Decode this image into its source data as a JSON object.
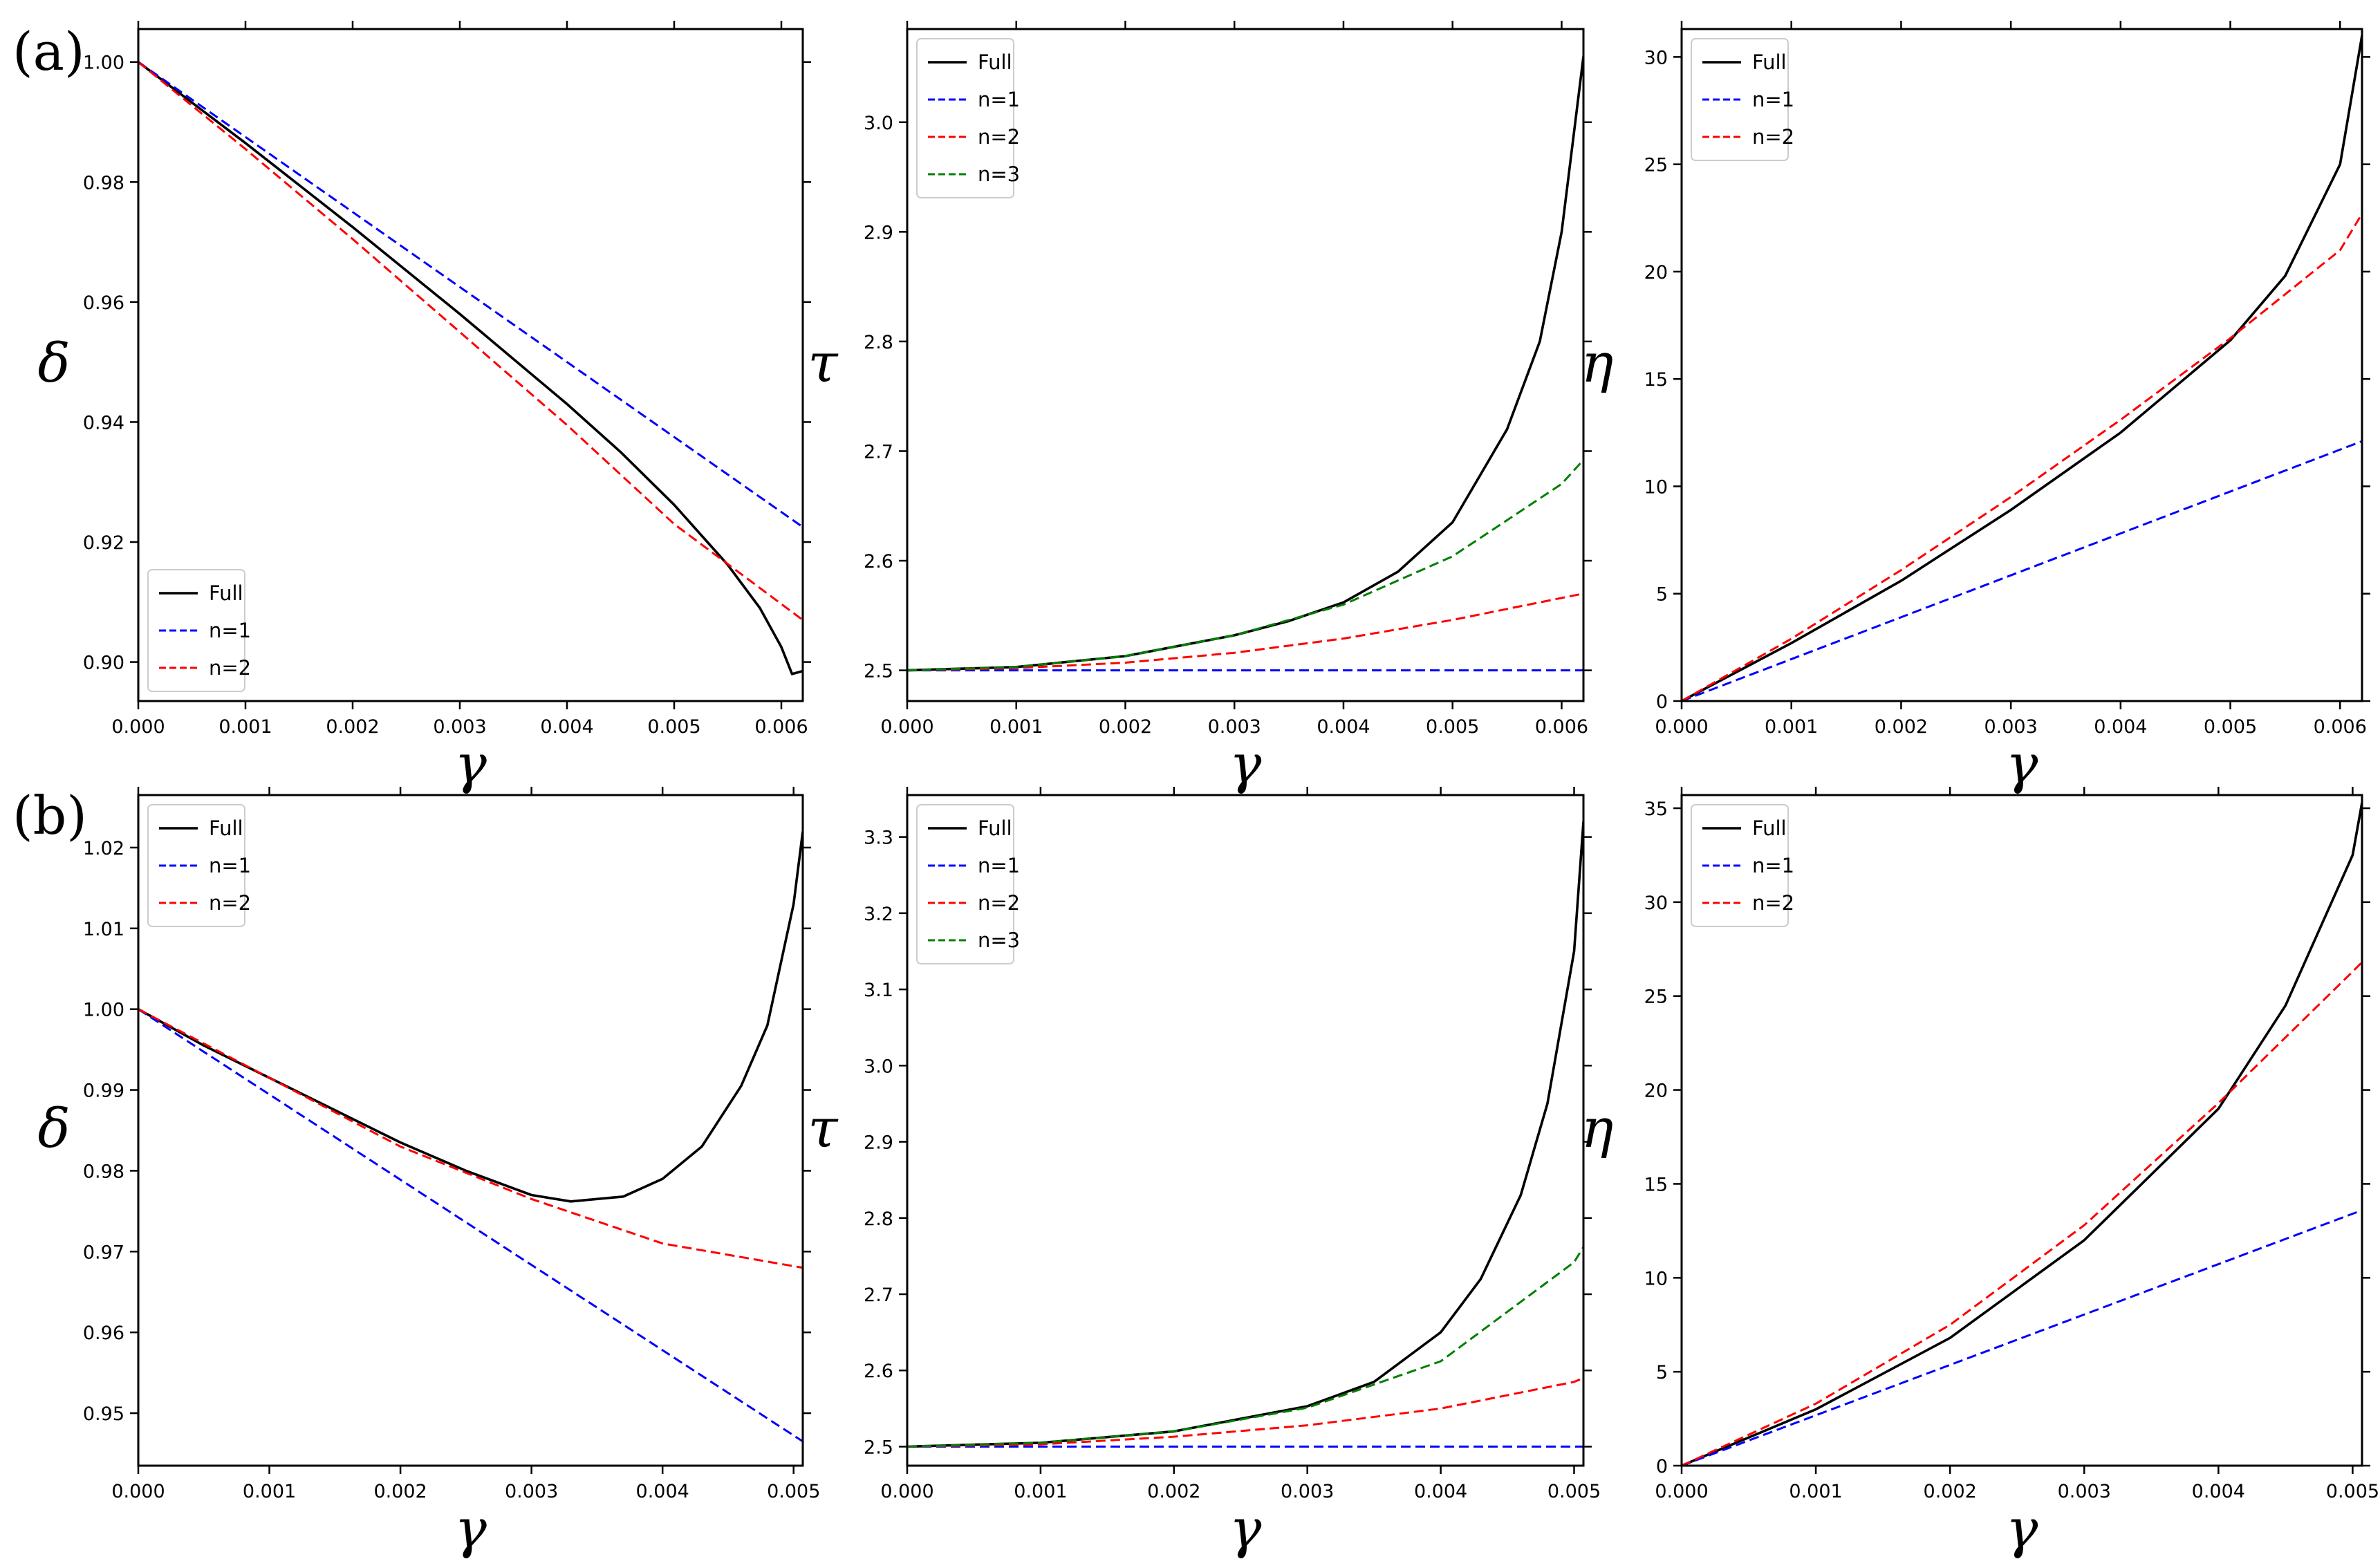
{
  "figure": {
    "row_labels": [
      "(a)",
      "(b)"
    ]
  },
  "chart_data": [
    {
      "id": "a-delta",
      "row": 0,
      "col": 0,
      "type": "line",
      "xlabel": "γ",
      "ylabel": "δ",
      "xlim": [
        0,
        0.0062
      ],
      "ylim": [
        0.8935,
        1.0055
      ],
      "xticks": [
        0,
        0.001,
        0.002,
        0.003,
        0.004,
        0.005,
        0.006
      ],
      "xticklabels": [
        "0.000",
        "0.001",
        "0.002",
        "0.003",
        "0.004",
        "0.005",
        "0.006"
      ],
      "yticks": [
        0.9,
        0.92,
        0.94,
        0.96,
        0.98,
        1.0
      ],
      "yticklabels": [
        "0.90",
        "0.92",
        "0.94",
        "0.96",
        "0.98",
        "1.00"
      ],
      "legend": {
        "location": "lower-left"
      },
      "series": [
        {
          "name": "Full",
          "color": "#000000",
          "dash": "solid",
          "x": [
            0,
            0.001,
            0.002,
            0.003,
            0.004,
            0.0045,
            0.005,
            0.0055,
            0.0058,
            0.006,
            0.0061,
            0.0062
          ],
          "y": [
            1.0,
            0.9865,
            0.9725,
            0.958,
            0.943,
            0.935,
            0.9262,
            0.9162,
            0.909,
            0.9025,
            0.898,
            0.8985
          ]
        },
        {
          "name": "n=1",
          "color": "#0000ff",
          "dash": "dashed",
          "x": [
            0,
            0.0062
          ],
          "y": [
            1.0,
            0.9225
          ]
        },
        {
          "name": "n=2",
          "color": "#ff0000",
          "dash": "dashed",
          "x": [
            0,
            0.001,
            0.002,
            0.003,
            0.004,
            0.005,
            0.0062
          ],
          "y": [
            1.0,
            0.9855,
            0.9705,
            0.955,
            0.9395,
            0.923,
            0.907
          ]
        }
      ]
    },
    {
      "id": "a-tau",
      "row": 0,
      "col": 1,
      "type": "line",
      "xlabel": "γ",
      "ylabel": "τ",
      "xlim": [
        0,
        0.0062
      ],
      "ylim": [
        2.472,
        3.085
      ],
      "xticks": [
        0,
        0.001,
        0.002,
        0.003,
        0.004,
        0.005,
        0.006
      ],
      "xticklabels": [
        "0.000",
        "0.001",
        "0.002",
        "0.003",
        "0.004",
        "0.005",
        "0.006"
      ],
      "yticks": [
        2.5,
        2.6,
        2.7,
        2.8,
        2.9,
        3.0
      ],
      "yticklabels": [
        "2.5",
        "2.6",
        "2.7",
        "2.8",
        "2.9",
        "3.0"
      ],
      "legend": {
        "location": "top-left"
      },
      "series": [
        {
          "name": "Full",
          "color": "#000000",
          "dash": "solid",
          "x": [
            0,
            0.001,
            0.002,
            0.003,
            0.0035,
            0.004,
            0.0045,
            0.005,
            0.0055,
            0.0058,
            0.006,
            0.0062
          ],
          "y": [
            2.5,
            2.503,
            2.513,
            2.532,
            2.545,
            2.562,
            2.59,
            2.635,
            2.72,
            2.8,
            2.9,
            3.06
          ]
        },
        {
          "name": "n=1",
          "color": "#0000ff",
          "dash": "dashed",
          "x": [
            0,
            0.0062
          ],
          "y": [
            2.5,
            2.5
          ]
        },
        {
          "name": "n=2",
          "color": "#ff0000",
          "dash": "dashed",
          "x": [
            0,
            0.001,
            0.002,
            0.003,
            0.004,
            0.005,
            0.006,
            0.0062
          ],
          "y": [
            2.5,
            2.502,
            2.507,
            2.516,
            2.529,
            2.546,
            2.566,
            2.57
          ]
        },
        {
          "name": "n=3",
          "color": "#008000",
          "dash": "dashed",
          "x": [
            0,
            0.001,
            0.002,
            0.003,
            0.004,
            0.005,
            0.006,
            0.0062
          ],
          "y": [
            2.5,
            2.503,
            2.513,
            2.532,
            2.56,
            2.604,
            2.67,
            2.692
          ]
        }
      ]
    },
    {
      "id": "a-eta",
      "row": 0,
      "col": 2,
      "type": "line",
      "xlabel": "γ",
      "ylabel": "η",
      "xlim": [
        0,
        0.0062
      ],
      "ylim": [
        0,
        31.3
      ],
      "xticks": [
        0,
        0.001,
        0.002,
        0.003,
        0.004,
        0.005,
        0.006
      ],
      "xticklabels": [
        "0.000",
        "0.001",
        "0.002",
        "0.003",
        "0.004",
        "0.005",
        "0.006"
      ],
      "yticks": [
        0,
        5,
        10,
        15,
        20,
        25,
        30
      ],
      "yticklabels": [
        "0",
        "5",
        "10",
        "15",
        "20",
        "25",
        "30"
      ],
      "legend": {
        "location": "top-left"
      },
      "series": [
        {
          "name": "Full",
          "color": "#000000",
          "dash": "solid",
          "x": [
            0,
            0.001,
            0.002,
            0.003,
            0.004,
            0.005,
            0.0055,
            0.006,
            0.0062
          ],
          "y": [
            0,
            2.7,
            5.6,
            8.9,
            12.5,
            16.8,
            19.8,
            25.0,
            31.0
          ]
        },
        {
          "name": "n=1",
          "color": "#0000ff",
          "dash": "dashed",
          "x": [
            0,
            0.0062
          ],
          "y": [
            0,
            12.1
          ]
        },
        {
          "name": "n=2",
          "color": "#ff0000",
          "dash": "dashed",
          "x": [
            0,
            0.001,
            0.002,
            0.003,
            0.004,
            0.005,
            0.006,
            0.0062
          ],
          "y": [
            0,
            2.9,
            6.1,
            9.5,
            13.1,
            16.9,
            21.0,
            22.7
          ]
        }
      ]
    },
    {
      "id": "b-delta",
      "row": 1,
      "col": 0,
      "type": "line",
      "xlabel": "γ",
      "ylabel": "δ",
      "xlim": [
        0,
        0.00507
      ],
      "ylim": [
        0.9435,
        1.0265
      ],
      "xticks": [
        0,
        0.001,
        0.002,
        0.003,
        0.004,
        0.005
      ],
      "xticklabels": [
        "0.000",
        "0.001",
        "0.002",
        "0.003",
        "0.004",
        "0.005"
      ],
      "yticks": [
        0.95,
        0.96,
        0.97,
        0.98,
        0.99,
        1.0,
        1.01,
        1.02
      ],
      "yticklabels": [
        "0.95",
        "0.96",
        "0.97",
        "0.98",
        "0.99",
        "1.00",
        "1.01",
        "1.02"
      ],
      "legend": {
        "location": "top-left"
      },
      "series": [
        {
          "name": "Full",
          "color": "#000000",
          "dash": "solid",
          "x": [
            0,
            0.0005,
            0.001,
            0.0015,
            0.002,
            0.0025,
            0.003,
            0.0033,
            0.0037,
            0.004,
            0.0043,
            0.0046,
            0.0048,
            0.005,
            0.00507
          ],
          "y": [
            1.0,
            0.9955,
            0.9915,
            0.9875,
            0.9835,
            0.98,
            0.977,
            0.9762,
            0.9768,
            0.979,
            0.983,
            0.9905,
            0.998,
            1.013,
            1.022
          ]
        },
        {
          "name": "n=1",
          "color": "#0000ff",
          "dash": "dashed",
          "x": [
            0,
            0.00507
          ],
          "y": [
            1.0,
            0.9465
          ]
        },
        {
          "name": "n=2",
          "color": "#ff0000",
          "dash": "dashed",
          "x": [
            0,
            0.001,
            0.002,
            0.003,
            0.004,
            0.00507
          ],
          "y": [
            1.0,
            0.9915,
            0.983,
            0.9765,
            0.971,
            0.968
          ]
        }
      ]
    },
    {
      "id": "b-tau",
      "row": 1,
      "col": 1,
      "type": "line",
      "xlabel": "γ",
      "ylabel": "τ",
      "xlim": [
        0,
        0.00507
      ],
      "ylim": [
        2.475,
        3.355
      ],
      "xticks": [
        0,
        0.001,
        0.002,
        0.003,
        0.004,
        0.005
      ],
      "xticklabels": [
        "0.000",
        "0.001",
        "0.002",
        "0.003",
        "0.004",
        "0.005"
      ],
      "yticks": [
        2.5,
        2.6,
        2.7,
        2.8,
        2.9,
        3.0,
        3.1,
        3.2,
        3.3
      ],
      "yticklabels": [
        "2.5",
        "2.6",
        "2.7",
        "2.8",
        "2.9",
        "3.0",
        "3.1",
        "3.2",
        "3.3"
      ],
      "legend": {
        "location": "top-left"
      },
      "series": [
        {
          "name": "Full",
          "color": "#000000",
          "dash": "solid",
          "x": [
            0,
            0.001,
            0.002,
            0.003,
            0.0035,
            0.004,
            0.0043,
            0.0046,
            0.0048,
            0.005,
            0.00507
          ],
          "y": [
            2.5,
            2.505,
            2.52,
            2.553,
            2.585,
            2.65,
            2.72,
            2.83,
            2.95,
            3.15,
            3.32
          ]
        },
        {
          "name": "n=1",
          "color": "#0000ff",
          "dash": "dashed",
          "x": [
            0,
            0.00507
          ],
          "y": [
            2.5,
            2.5
          ]
        },
        {
          "name": "n=2",
          "color": "#ff0000",
          "dash": "dashed",
          "x": [
            0,
            0.001,
            0.002,
            0.003,
            0.004,
            0.005,
            0.00507
          ],
          "y": [
            2.5,
            2.503,
            2.513,
            2.528,
            2.55,
            2.585,
            2.59
          ]
        },
        {
          "name": "n=3",
          "color": "#008000",
          "dash": "dashed",
          "x": [
            0,
            0.001,
            0.002,
            0.003,
            0.004,
            0.005,
            0.00507
          ],
          "y": [
            2.5,
            2.505,
            2.52,
            2.551,
            2.612,
            2.742,
            2.762
          ]
        }
      ]
    },
    {
      "id": "b-eta",
      "row": 1,
      "col": 2,
      "type": "line",
      "xlabel": "γ",
      "ylabel": "η",
      "xlim": [
        0,
        0.00507
      ],
      "ylim": [
        0,
        35.7
      ],
      "xticks": [
        0,
        0.001,
        0.002,
        0.003,
        0.004,
        0.005
      ],
      "xticklabels": [
        "0.000",
        "0.001",
        "0.002",
        "0.003",
        "0.004",
        "0.005"
      ],
      "yticks": [
        0,
        5,
        10,
        15,
        20,
        25,
        30,
        35
      ],
      "yticklabels": [
        "0",
        "5",
        "10",
        "15",
        "20",
        "25",
        "30",
        "35"
      ],
      "legend": {
        "location": "top-left"
      },
      "series": [
        {
          "name": "Full",
          "color": "#000000",
          "dash": "solid",
          "x": [
            0,
            0.001,
            0.002,
            0.003,
            0.004,
            0.0045,
            0.005,
            0.00507
          ],
          "y": [
            0,
            3.0,
            6.8,
            12.0,
            19.0,
            24.5,
            32.5,
            35.3
          ]
        },
        {
          "name": "n=1",
          "color": "#0000ff",
          "dash": "dashed",
          "x": [
            0,
            0.00507
          ],
          "y": [
            0,
            13.6
          ]
        },
        {
          "name": "n=2",
          "color": "#ff0000",
          "dash": "dashed",
          "x": [
            0,
            0.001,
            0.002,
            0.003,
            0.004,
            0.005,
            0.00507
          ],
          "y": [
            0,
            3.3,
            7.5,
            12.8,
            19.3,
            26.3,
            26.8
          ]
        }
      ]
    }
  ]
}
